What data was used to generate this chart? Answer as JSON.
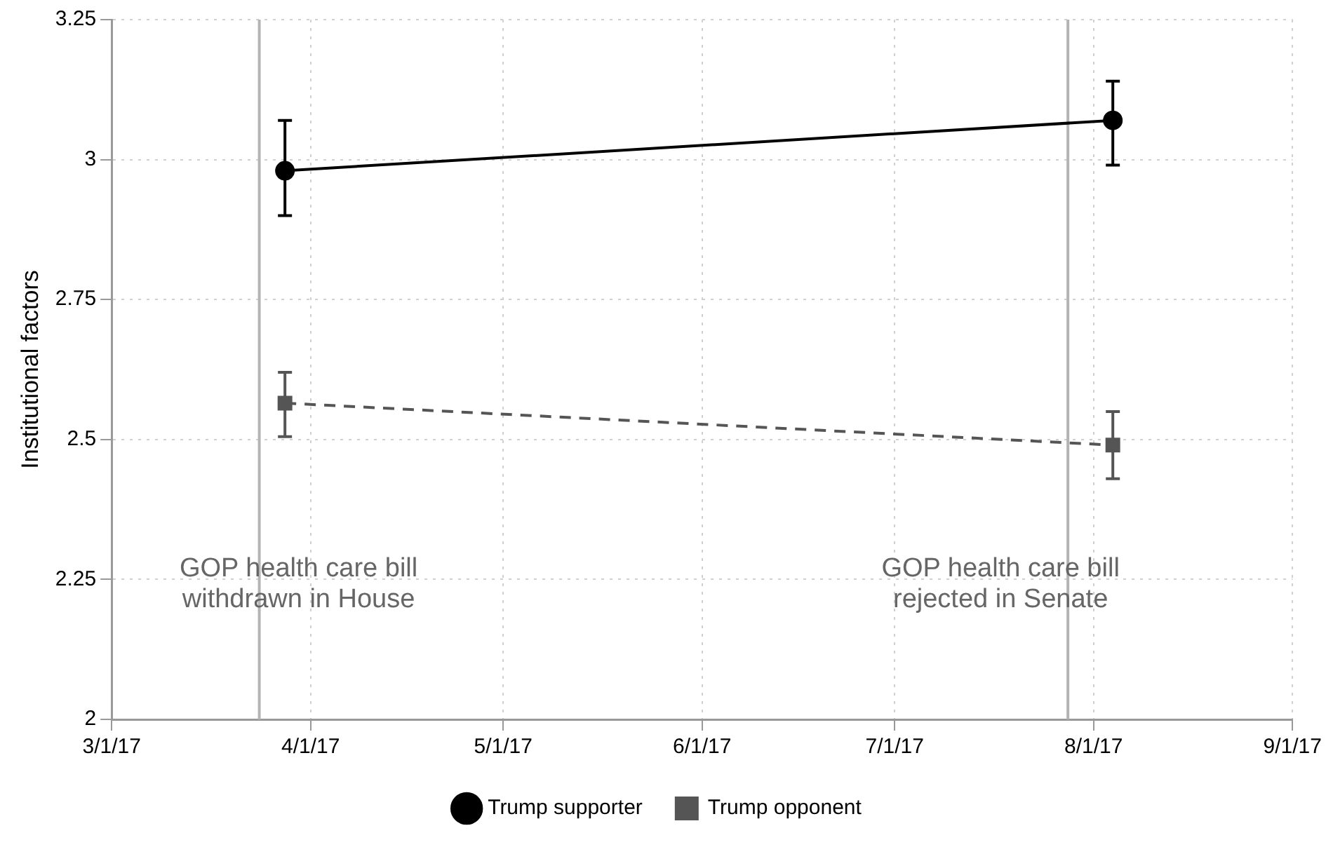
{
  "chart_data": {
    "type": "line",
    "ylabel": "Institutional factors",
    "series": [
      {
        "name": "Trump supporter",
        "color": "#000000",
        "marker": "circle",
        "line_style": "solid",
        "x": [
          "2017-03-28",
          "2017-08-04"
        ],
        "values": [
          2.98,
          3.07
        ],
        "errors": [
          [
            2.9,
            3.07
          ],
          [
            2.99,
            3.14
          ]
        ]
      },
      {
        "name": "Trump opponent",
        "color": "#555555",
        "marker": "square",
        "line_style": "dashed",
        "x": [
          "2017-03-28",
          "2017-08-04"
        ],
        "values": [
          2.565,
          2.49
        ],
        "errors": [
          [
            2.505,
            2.62
          ],
          [
            2.43,
            2.55
          ]
        ]
      }
    ],
    "xlim": [
      "2017-03-01",
      "2017-09-01"
    ],
    "xticks": [
      {
        "value": "2017-03-01",
        "label": "3/1/17"
      },
      {
        "value": "2017-04-01",
        "label": "4/1/17"
      },
      {
        "value": "2017-05-01",
        "label": "5/1/17"
      },
      {
        "value": "2017-06-01",
        "label": "6/1/17"
      },
      {
        "value": "2017-07-01",
        "label": "7/1/17"
      },
      {
        "value": "2017-08-01",
        "label": "8/1/17"
      },
      {
        "value": "2017-09-01",
        "label": "9/1/17"
      }
    ],
    "ylim": [
      2,
      3.25
    ],
    "yticks": [
      2,
      2.25,
      2.5,
      2.75,
      3,
      3.25
    ],
    "ref_lines": [
      {
        "axis": "x",
        "value": "2017-03-24",
        "label": "GOP health care bill withdrawn in House",
        "color": "#b4b4b4"
      },
      {
        "axis": "x",
        "value": "2017-07-28",
        "label": "GOP health care bill rejected in Senate",
        "color": "#b4b4b4"
      }
    ],
    "grid": true,
    "legend": "bottom"
  }
}
